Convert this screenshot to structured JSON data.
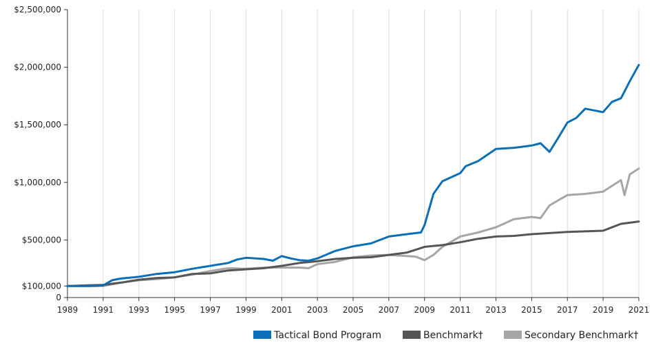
{
  "chart_data": {
    "type": "line",
    "title": "",
    "xlabel": "",
    "ylabel": "",
    "xlim": [
      1989,
      2021
    ],
    "xticks": [
      "1989",
      "1991",
      "1993",
      "1995",
      "1997",
      "1999",
      "2001",
      "2003",
      "2005",
      "2007",
      "2009",
      "2011",
      "2013",
      "2015",
      "2017",
      "2019",
      "2021"
    ],
    "yticks": [
      {
        "value": 0,
        "label": "0"
      },
      {
        "value": 100000,
        "label": "$100,000"
      },
      {
        "value": 500000,
        "label": "$500,000"
      },
      {
        "value": 1000000,
        "label": "$1,000,000"
      },
      {
        "value": 1500000,
        "label": "$1,500,000"
      },
      {
        "value": 2000000,
        "label": "$2,000,000"
      },
      {
        "value": 2500000,
        "label": "$2,500,000"
      }
    ],
    "ylim": [
      0,
      2500000
    ],
    "grid": "vertical",
    "legend": "bottom-right",
    "series": [
      {
        "name": "Tactical Bond Program",
        "color": "#0a6fb8",
        "x": [
          1989,
          1990,
          1991,
          1991.5,
          1992,
          1993,
          1994,
          1995,
          1996,
          1997,
          1998,
          1998.5,
          1999,
          2000,
          2000.5,
          2001,
          2001.5,
          2002,
          2002.5,
          2003,
          2004,
          2005,
          2006,
          2007,
          2008,
          2008.8,
          2009,
          2009.5,
          2010,
          2011,
          2011.3,
          2012,
          2013,
          2014,
          2015,
          2015.5,
          2016,
          2016.5,
          2017,
          2017.5,
          2018,
          2019,
          2019.5,
          2020,
          2020.2,
          2020.5,
          2021
        ],
        "y": [
          100000,
          100000,
          105000,
          150000,
          165000,
          180000,
          205000,
          220000,
          250000,
          275000,
          300000,
          330000,
          345000,
          335000,
          320000,
          360000,
          340000,
          325000,
          320000,
          340000,
          405000,
          445000,
          470000,
          530000,
          550000,
          565000,
          630000,
          900000,
          1010000,
          1080000,
          1140000,
          1185000,
          1290000,
          1300000,
          1320000,
          1340000,
          1265000,
          1390000,
          1520000,
          1560000,
          1640000,
          1610000,
          1700000,
          1730000,
          1790000,
          1880000,
          2020000
        ]
      },
      {
        "name": "Benchmark†",
        "color": "#555555",
        "x": [
          1989,
          1990,
          1991,
          1992,
          1993,
          1994,
          1995,
          1996,
          1997,
          1998,
          1999,
          2000,
          2001,
          2002,
          2003,
          2004,
          2005,
          2006,
          2007,
          2008,
          2009,
          2010,
          2011,
          2012,
          2013,
          2014,
          2015,
          2016,
          2017,
          2018,
          2019,
          2020,
          2021
        ],
        "y": [
          100000,
          105000,
          110000,
          130000,
          155000,
          170000,
          175000,
          205000,
          210000,
          235000,
          245000,
          255000,
          275000,
          300000,
          315000,
          335000,
          345000,
          350000,
          370000,
          390000,
          440000,
          455000,
          480000,
          510000,
          530000,
          535000,
          550000,
          560000,
          570000,
          575000,
          580000,
          640000,
          660000
        ]
      },
      {
        "name": "Secondary Benchmark†",
        "color": "#a6a6a6",
        "x": [
          1989,
          1990,
          1991,
          1992,
          1993,
          1994,
          1995,
          1996,
          1997,
          1998,
          1999,
          2000,
          2001,
          2002,
          2002.5,
          2003,
          2004,
          2005,
          2006,
          2007,
          2008,
          2008.5,
          2009,
          2009.5,
          2010,
          2011,
          2012,
          2013,
          2014,
          2015,
          2015.5,
          2016,
          2017,
          2018,
          2019,
          2020,
          2020.2,
          2020.5,
          2021
        ],
        "y": [
          100000,
          98000,
          100000,
          130000,
          150000,
          160000,
          175000,
          200000,
          230000,
          255000,
          250000,
          260000,
          260000,
          260000,
          255000,
          290000,
          310000,
          350000,
          365000,
          370000,
          360000,
          355000,
          325000,
          370000,
          440000,
          530000,
          565000,
          610000,
          680000,
          700000,
          690000,
          800000,
          890000,
          900000,
          920000,
          1020000,
          890000,
          1070000,
          1120000
        ]
      }
    ]
  }
}
